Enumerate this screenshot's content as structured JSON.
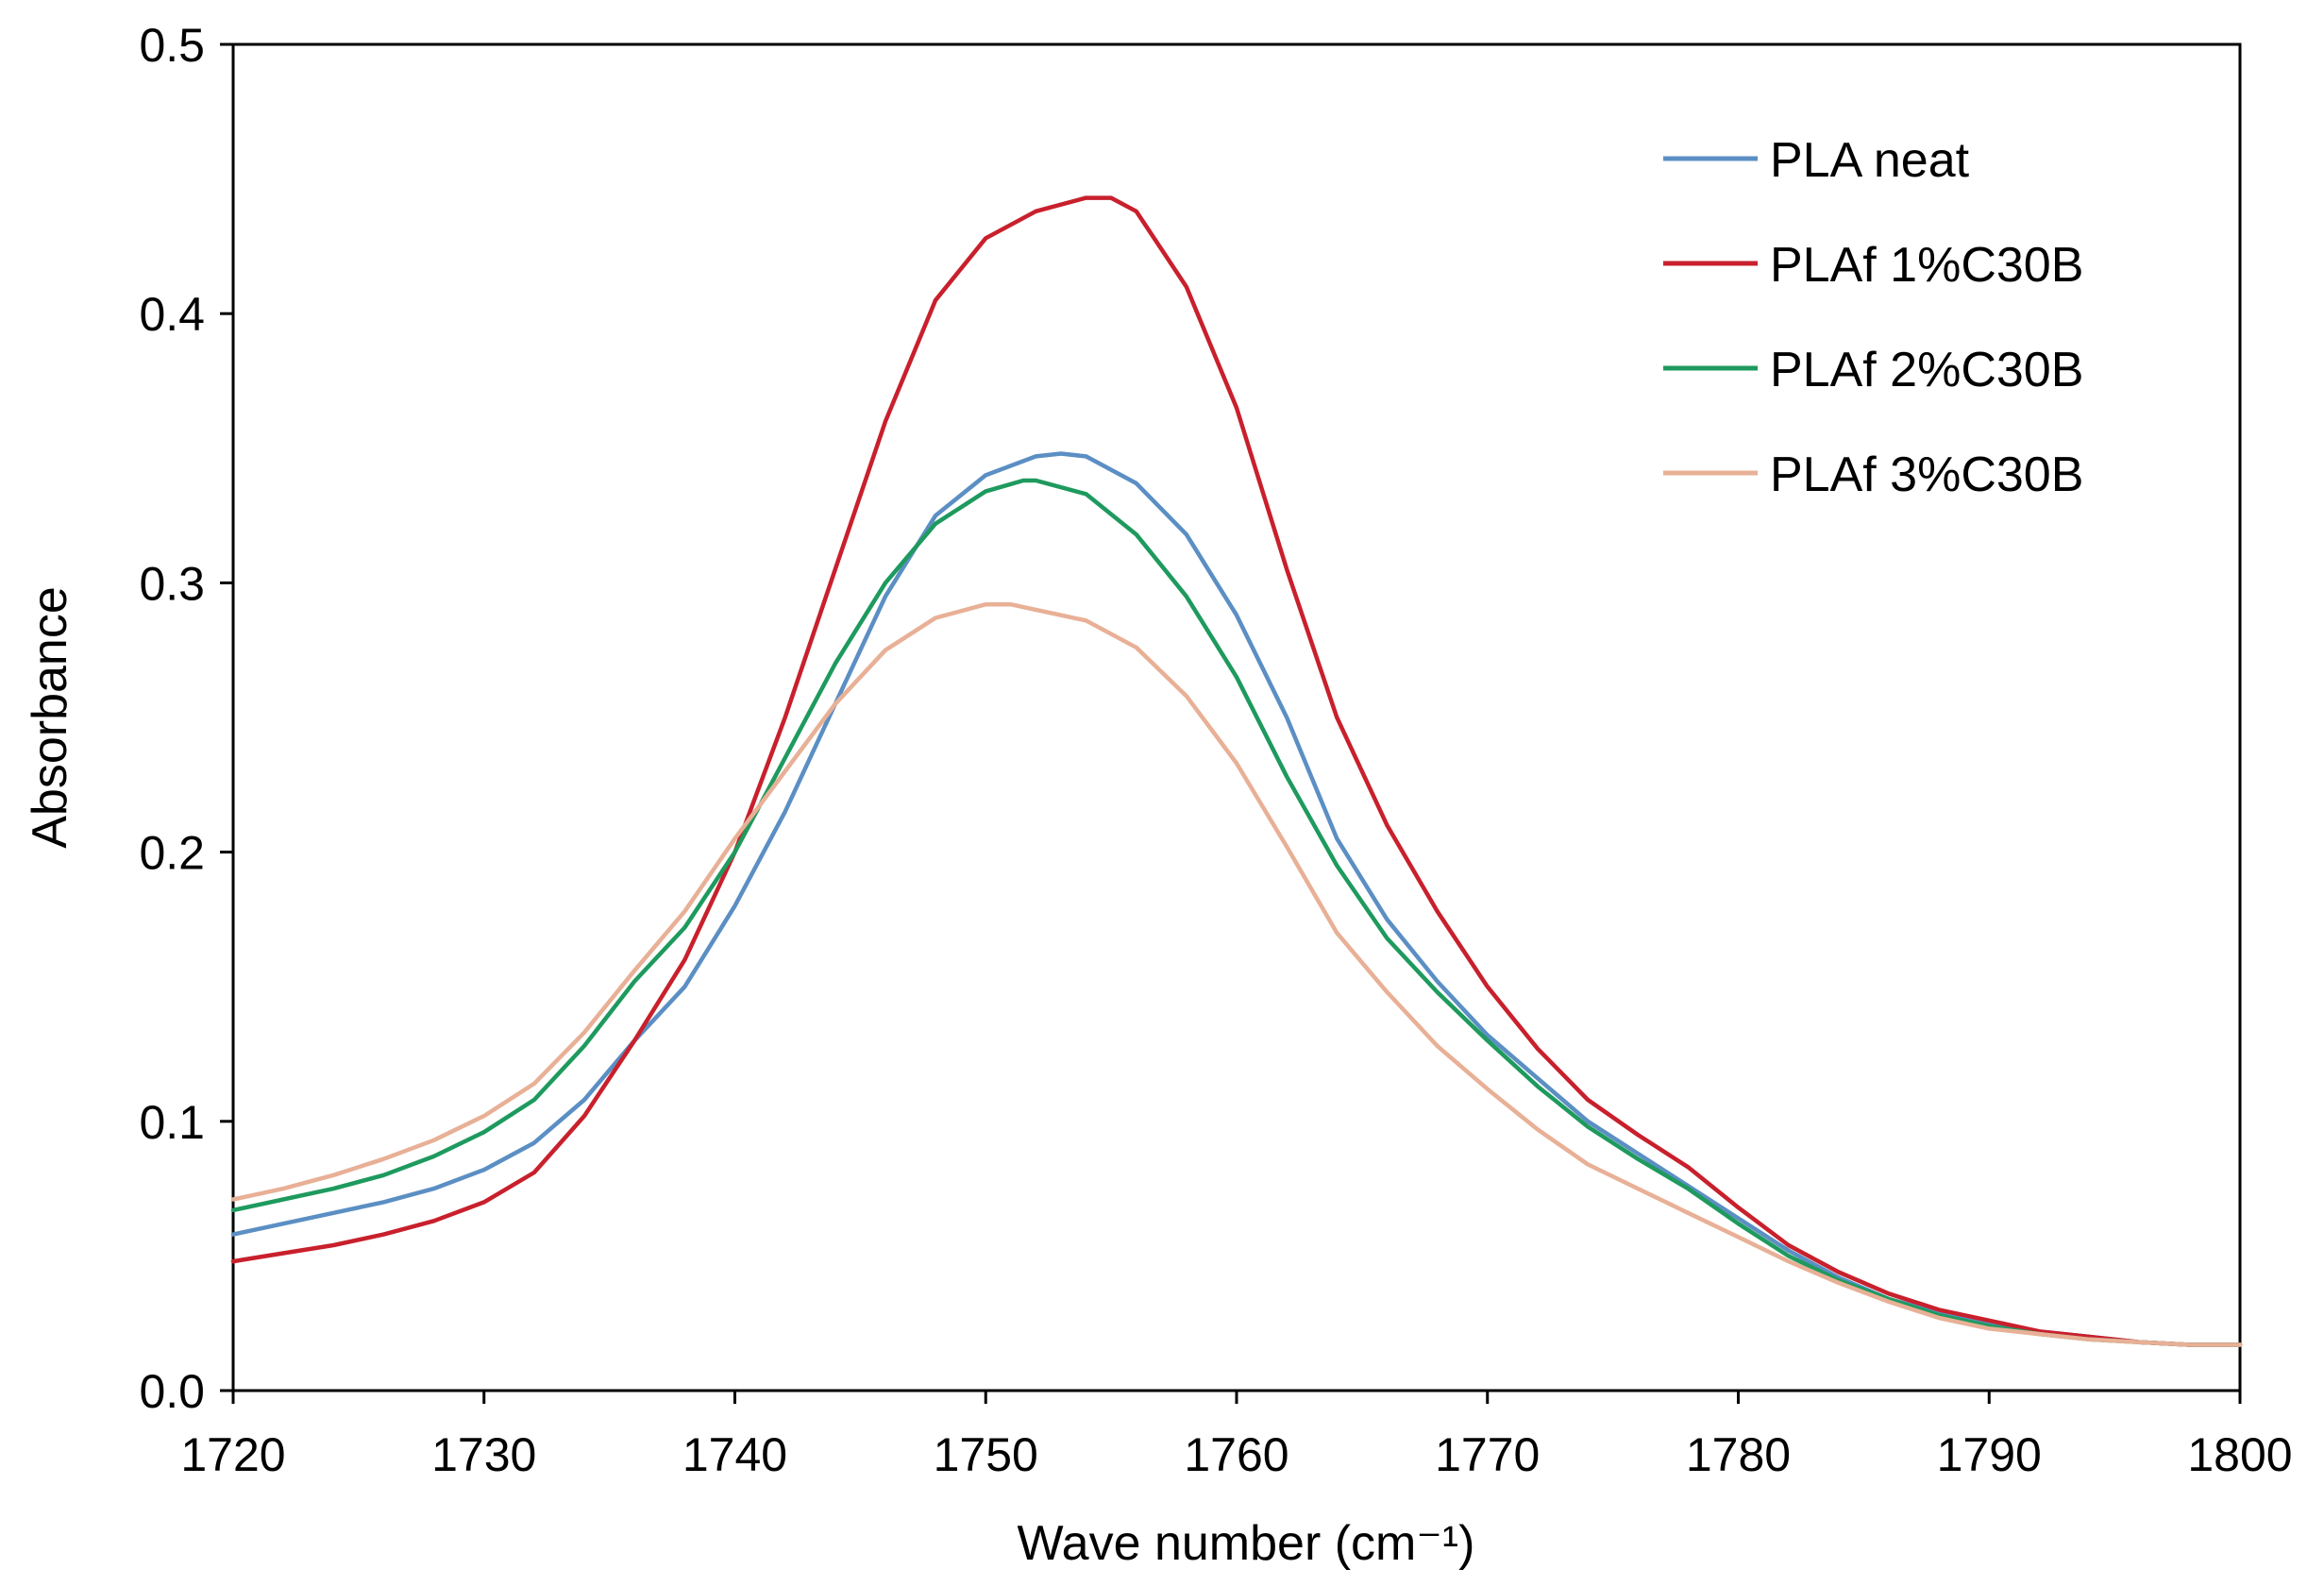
{
  "chart_data": {
    "type": "line",
    "title": "",
    "xlabel": "Wave number   (cm⁻¹)",
    "ylabel": "Absorbance",
    "xlim": [
      1720,
      1800
    ],
    "ylim": [
      0.0,
      0.5
    ],
    "x_ticks": [
      1720,
      1730,
      1740,
      1750,
      1760,
      1770,
      1780,
      1790,
      1800
    ],
    "x_tick_labels": [
      "1720",
      "1730",
      "1740",
      "1750",
      "1760",
      "1770",
      "1780",
      "1790",
      "1800"
    ],
    "y_ticks": [
      0.0,
      0.1,
      0.2,
      0.3,
      0.4,
      0.5
    ],
    "y_tick_labels": [
      "0.0",
      "0.1",
      "0.2",
      "0.3",
      "0.4",
      "0.5"
    ],
    "grid": false,
    "legend_position": "top-right",
    "series": [
      {
        "name": "PLA neat",
        "color": "#5b8fc4",
        "points": [
          [
            1720,
            0.058
          ],
          [
            1722,
            0.062
          ],
          [
            1724,
            0.066
          ],
          [
            1726,
            0.07
          ],
          [
            1728,
            0.075
          ],
          [
            1730,
            0.082
          ],
          [
            1732,
            0.092
          ],
          [
            1734,
            0.108
          ],
          [
            1736,
            0.13
          ],
          [
            1738,
            0.15
          ],
          [
            1740,
            0.18
          ],
          [
            1742,
            0.215
          ],
          [
            1744,
            0.255
          ],
          [
            1746,
            0.295
          ],
          [
            1748,
            0.325
          ],
          [
            1750,
            0.34
          ],
          [
            1752,
            0.347
          ],
          [
            1753,
            0.348
          ],
          [
            1754,
            0.347
          ],
          [
            1756,
            0.337
          ],
          [
            1758,
            0.318
          ],
          [
            1760,
            0.288
          ],
          [
            1762,
            0.25
          ],
          [
            1764,
            0.205
          ],
          [
            1766,
            0.175
          ],
          [
            1768,
            0.152
          ],
          [
            1770,
            0.132
          ],
          [
            1772,
            0.116
          ],
          [
            1774,
            0.1
          ],
          [
            1776,
            0.088
          ],
          [
            1778,
            0.076
          ],
          [
            1780,
            0.064
          ],
          [
            1782,
            0.052
          ],
          [
            1784,
            0.042
          ],
          [
            1786,
            0.034
          ],
          [
            1788,
            0.029
          ],
          [
            1790,
            0.025
          ],
          [
            1792,
            0.022
          ],
          [
            1794,
            0.02
          ],
          [
            1796,
            0.018
          ],
          [
            1798,
            0.017
          ],
          [
            1800,
            0.017
          ]
        ]
      },
      {
        "name": "PLAf 1%C30B",
        "color": "#c8202c",
        "points": [
          [
            1720,
            0.048
          ],
          [
            1722,
            0.051
          ],
          [
            1724,
            0.054
          ],
          [
            1726,
            0.058
          ],
          [
            1728,
            0.063
          ],
          [
            1730,
            0.07
          ],
          [
            1732,
            0.081
          ],
          [
            1734,
            0.102
          ],
          [
            1736,
            0.13
          ],
          [
            1738,
            0.16
          ],
          [
            1740,
            0.2
          ],
          [
            1742,
            0.25
          ],
          [
            1744,
            0.305
          ],
          [
            1746,
            0.36
          ],
          [
            1748,
            0.405
          ],
          [
            1750,
            0.428
          ],
          [
            1752,
            0.438
          ],
          [
            1754,
            0.443
          ],
          [
            1755,
            0.443
          ],
          [
            1756,
            0.438
          ],
          [
            1758,
            0.41
          ],
          [
            1760,
            0.365
          ],
          [
            1762,
            0.305
          ],
          [
            1764,
            0.25
          ],
          [
            1766,
            0.21
          ],
          [
            1768,
            0.178
          ],
          [
            1770,
            0.15
          ],
          [
            1772,
            0.127
          ],
          [
            1774,
            0.108
          ],
          [
            1776,
            0.095
          ],
          [
            1778,
            0.083
          ],
          [
            1780,
            0.068
          ],
          [
            1782,
            0.054
          ],
          [
            1784,
            0.044
          ],
          [
            1786,
            0.036
          ],
          [
            1788,
            0.03
          ],
          [
            1790,
            0.026
          ],
          [
            1792,
            0.022
          ],
          [
            1794,
            0.02
          ],
          [
            1796,
            0.018
          ],
          [
            1798,
            0.017
          ],
          [
            1800,
            0.017
          ]
        ]
      },
      {
        "name": "PLAf 2%C30B",
        "color": "#1e9a5e",
        "points": [
          [
            1720,
            0.067
          ],
          [
            1722,
            0.071
          ],
          [
            1724,
            0.075
          ],
          [
            1726,
            0.08
          ],
          [
            1728,
            0.087
          ],
          [
            1730,
            0.096
          ],
          [
            1732,
            0.108
          ],
          [
            1734,
            0.128
          ],
          [
            1736,
            0.152
          ],
          [
            1738,
            0.172
          ],
          [
            1740,
            0.2
          ],
          [
            1742,
            0.235
          ],
          [
            1744,
            0.27
          ],
          [
            1746,
            0.3
          ],
          [
            1748,
            0.322
          ],
          [
            1750,
            0.334
          ],
          [
            1751.5,
            0.338
          ],
          [
            1752,
            0.338
          ],
          [
            1754,
            0.333
          ],
          [
            1756,
            0.318
          ],
          [
            1758,
            0.295
          ],
          [
            1760,
            0.265
          ],
          [
            1762,
            0.228
          ],
          [
            1764,
            0.195
          ],
          [
            1766,
            0.168
          ],
          [
            1768,
            0.148
          ],
          [
            1770,
            0.13
          ],
          [
            1772,
            0.113
          ],
          [
            1774,
            0.098
          ],
          [
            1776,
            0.086
          ],
          [
            1778,
            0.075
          ],
          [
            1780,
            0.062
          ],
          [
            1782,
            0.05
          ],
          [
            1784,
            0.041
          ],
          [
            1786,
            0.034
          ],
          [
            1788,
            0.028
          ],
          [
            1790,
            0.024
          ],
          [
            1792,
            0.021
          ],
          [
            1794,
            0.019
          ],
          [
            1796,
            0.018
          ],
          [
            1798,
            0.017
          ],
          [
            1800,
            0.017
          ]
        ]
      },
      {
        "name": "PLAf 3%C30B",
        "color": "#e8b096",
        "points": [
          [
            1720,
            0.071
          ],
          [
            1722,
            0.075
          ],
          [
            1724,
            0.08
          ],
          [
            1726,
            0.086
          ],
          [
            1728,
            0.093
          ],
          [
            1730,
            0.102
          ],
          [
            1732,
            0.114
          ],
          [
            1734,
            0.133
          ],
          [
            1736,
            0.156
          ],
          [
            1738,
            0.178
          ],
          [
            1740,
            0.205
          ],
          [
            1742,
            0.23
          ],
          [
            1744,
            0.255
          ],
          [
            1746,
            0.275
          ],
          [
            1748,
            0.287
          ],
          [
            1750,
            0.292
          ],
          [
            1751,
            0.292
          ],
          [
            1752,
            0.29
          ],
          [
            1754,
            0.286
          ],
          [
            1756,
            0.276
          ],
          [
            1758,
            0.258
          ],
          [
            1760,
            0.233
          ],
          [
            1762,
            0.202
          ],
          [
            1764,
            0.17
          ],
          [
            1766,
            0.148
          ],
          [
            1768,
            0.128
          ],
          [
            1770,
            0.112
          ],
          [
            1772,
            0.097
          ],
          [
            1774,
            0.084
          ],
          [
            1776,
            0.075
          ],
          [
            1778,
            0.066
          ],
          [
            1780,
            0.057
          ],
          [
            1782,
            0.048
          ],
          [
            1784,
            0.04
          ],
          [
            1786,
            0.033
          ],
          [
            1788,
            0.027
          ],
          [
            1790,
            0.023
          ],
          [
            1792,
            0.021
          ],
          [
            1794,
            0.019
          ],
          [
            1796,
            0.018
          ],
          [
            1798,
            0.017
          ],
          [
            1800,
            0.017
          ]
        ]
      }
    ]
  }
}
